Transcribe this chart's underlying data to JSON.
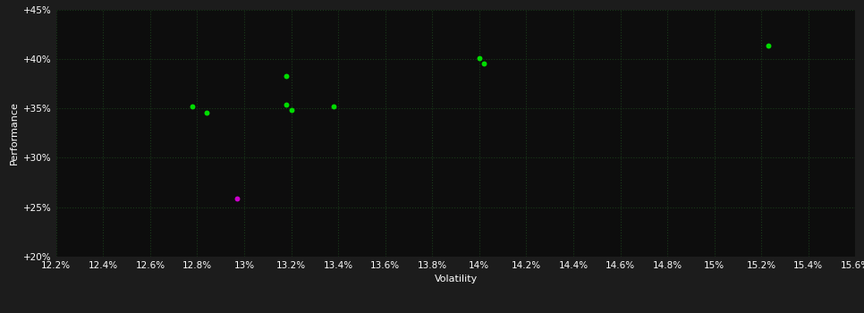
{
  "background_color": "#1c1c1c",
  "plot_bg_color": "#0d0d0d",
  "grid_color": "#1a3a1a",
  "text_color": "#ffffff",
  "xlabel": "Volatility",
  "ylabel": "Performance",
  "xlim": [
    0.122,
    0.156
  ],
  "ylim": [
    0.2,
    0.45
  ],
  "xticks": [
    0.122,
    0.124,
    0.126,
    0.128,
    0.13,
    0.132,
    0.134,
    0.136,
    0.138,
    0.14,
    0.142,
    0.144,
    0.146,
    0.148,
    0.15,
    0.152,
    0.154,
    0.156
  ],
  "yticks": [
    0.2,
    0.25,
    0.3,
    0.35,
    0.4,
    0.45
  ],
  "green_points": [
    [
      0.1278,
      0.352
    ],
    [
      0.1284,
      0.346
    ],
    [
      0.1318,
      0.354
    ],
    [
      0.132,
      0.348
    ],
    [
      0.1318,
      0.383
    ],
    [
      0.1338,
      0.352
    ],
    [
      0.14,
      0.401
    ],
    [
      0.1402,
      0.395
    ],
    [
      0.1523,
      0.413
    ]
  ],
  "magenta_points": [
    [
      0.1297,
      0.259
    ]
  ],
  "point_size": 18,
  "green_color": "#00dd00",
  "magenta_color": "#cc00cc",
  "label_fontsize": 8,
  "tick_fontsize": 7.5
}
